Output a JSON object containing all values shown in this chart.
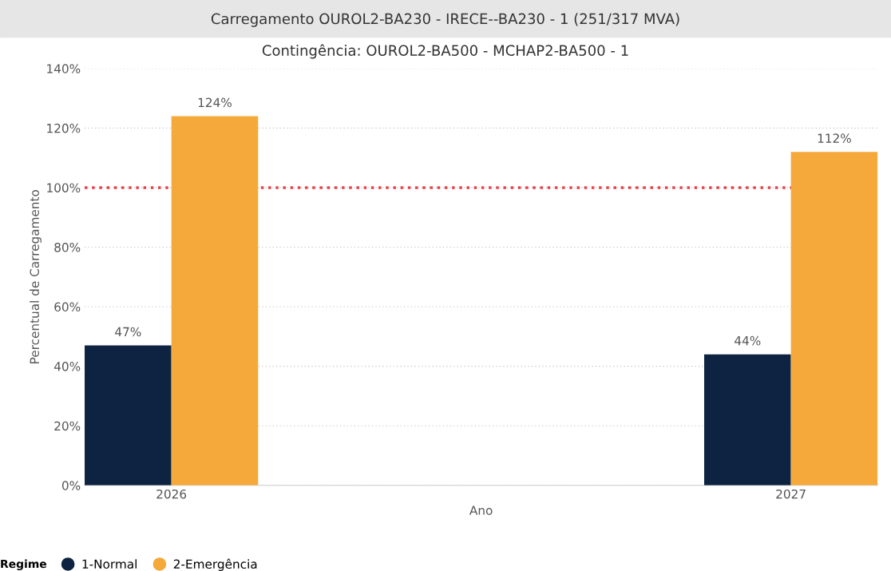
{
  "chart_data": {
    "type": "bar",
    "title": "Carregamento OUROL2-BA230 - IRECE--BA230 - 1 (251/317 MVA)",
    "subtitle": "Contingência: OUROL2-BA500 - MCHAP2-BA500 - 1",
    "xlabel": "Ano",
    "ylabel": "Percentual de Carregamento",
    "legend_title": "Regime",
    "categories": [
      "2026",
      "2027"
    ],
    "series": [
      {
        "name": "1-Normal",
        "color": "#0e2241",
        "values": [
          47,
          44
        ],
        "value_labels": [
          "47%",
          "44%"
        ]
      },
      {
        "name": "2-Emergência",
        "color": "#f5a93a",
        "values": [
          124,
          112
        ],
        "value_labels": [
          "124%",
          "112%"
        ]
      }
    ],
    "ylim": [
      0,
      140
    ],
    "yticks": [
      {
        "value": 0,
        "label": "0%"
      },
      {
        "value": 20,
        "label": "20%"
      },
      {
        "value": 40,
        "label": "40%"
      },
      {
        "value": 60,
        "label": "60%"
      },
      {
        "value": 80,
        "label": "80%"
      },
      {
        "value": 100,
        "label": "100%"
      },
      {
        "value": 120,
        "label": "120%"
      },
      {
        "value": 140,
        "label": "140%"
      }
    ],
    "ref_lines": [
      {
        "axis": "y",
        "value": 100,
        "color": "#e8414a",
        "line_style": "dotted"
      }
    ],
    "grid": "y",
    "legend": "bottom"
  }
}
